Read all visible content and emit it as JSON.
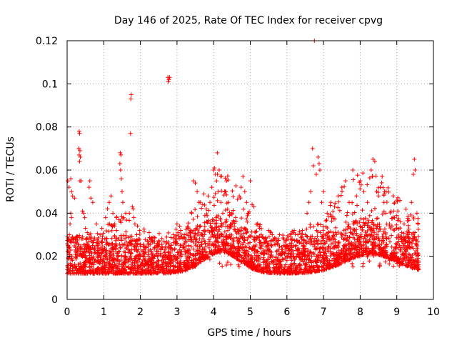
{
  "chart_data": {
    "type": "scatter",
    "title": "Day 146 of 2025, Rate Of TEC Index for receiver cpvg",
    "xlabel": "GPS time / hours",
    "ylabel": "ROTI / TECUs",
    "xlim": [
      0,
      10
    ],
    "ylim": [
      0,
      0.12
    ],
    "x_ticks": [
      0,
      1,
      2,
      3,
      4,
      5,
      6,
      7,
      8,
      9,
      10
    ],
    "x_tick_labels": [
      "0",
      "1",
      "2",
      "3",
      "4",
      "5",
      "6",
      "7",
      "8",
      "9",
      "10"
    ],
    "y_ticks": [
      0,
      0.02,
      0.04,
      0.06,
      0.08,
      0.1,
      0.12
    ],
    "y_tick_labels": [
      "0",
      "0.02",
      "0.04",
      "0.06",
      "0.08",
      "0.1",
      "0.12"
    ],
    "grid": true,
    "marker": "+",
    "color": "#ff0000",
    "series": [
      {
        "name": "ROTI",
        "points": [
          [
            0.02,
            0.055
          ],
          [
            0.05,
            0.052
          ],
          [
            0.1,
            0.056
          ],
          [
            0.12,
            0.05
          ],
          [
            0.15,
            0.048
          ],
          [
            0.2,
            0.047
          ],
          [
            0.1,
            0.04
          ],
          [
            0.12,
            0.038
          ],
          [
            0.08,
            0.035
          ],
          [
            0.06,
            0.03
          ],
          [
            0.15,
            0.029
          ],
          [
            0.33,
            0.078
          ],
          [
            0.34,
            0.077
          ],
          [
            0.32,
            0.07
          ],
          [
            0.35,
            0.069
          ],
          [
            0.33,
            0.067
          ],
          [
            0.36,
            0.066
          ],
          [
            0.34,
            0.064
          ],
          [
            0.35,
            0.055
          ],
          [
            0.38,
            0.055
          ],
          [
            0.42,
            0.041
          ],
          [
            0.45,
            0.04
          ],
          [
            0.48,
            0.038
          ],
          [
            0.5,
            0.033
          ],
          [
            0.55,
            0.031
          ],
          [
            0.6,
            0.03
          ],
          [
            0.65,
            0.028
          ],
          [
            0.65,
            0.047
          ],
          [
            0.7,
            0.045
          ],
          [
            0.8,
            0.035
          ],
          [
            0.9,
            0.03
          ],
          [
            0.62,
            0.055
          ],
          [
            0.6,
            0.052
          ],
          [
            1.05,
            0.038
          ],
          [
            1.1,
            0.042
          ],
          [
            1.15,
            0.045
          ],
          [
            1.2,
            0.048
          ],
          [
            1.25,
            0.04
          ],
          [
            1.3,
            0.035
          ],
          [
            1.35,
            0.032
          ],
          [
            1.4,
            0.028
          ],
          [
            1.45,
            0.068
          ],
          [
            1.47,
            0.067
          ],
          [
            1.44,
            0.063
          ],
          [
            1.46,
            0.06
          ],
          [
            1.48,
            0.056
          ],
          [
            1.5,
            0.05
          ],
          [
            1.52,
            0.045
          ],
          [
            1.6,
            0.04
          ],
          [
            1.7,
            0.04
          ],
          [
            1.75,
            0.095
          ],
          [
            1.74,
            0.093
          ],
          [
            1.73,
            0.077
          ],
          [
            1.78,
            0.043
          ],
          [
            1.8,
            0.042
          ],
          [
            1.82,
            0.038
          ],
          [
            1.85,
            0.035
          ],
          [
            1.9,
            0.03
          ],
          [
            1.95,
            0.028
          ],
          [
            2.75,
            0.103
          ],
          [
            2.78,
            0.102
          ],
          [
            2.8,
            0.103
          ],
          [
            2.76,
            0.101
          ],
          [
            3.0,
            0.035
          ],
          [
            3.1,
            0.032
          ],
          [
            3.2,
            0.03
          ],
          [
            3.3,
            0.033
          ],
          [
            3.4,
            0.04
          ],
          [
            3.45,
            0.055
          ],
          [
            3.5,
            0.054
          ],
          [
            3.55,
            0.05
          ],
          [
            3.6,
            0.045
          ],
          [
            3.7,
            0.044
          ],
          [
            3.8,
            0.042
          ],
          [
            3.85,
            0.048
          ],
          [
            3.9,
            0.045
          ],
          [
            3.95,
            0.052
          ],
          [
            4.0,
            0.06
          ],
          [
            4.02,
            0.061
          ],
          [
            4.05,
            0.058
          ],
          [
            4.08,
            0.055
          ],
          [
            4.1,
            0.068
          ],
          [
            4.12,
            0.05
          ],
          [
            4.15,
            0.06
          ],
          [
            4.2,
            0.045
          ],
          [
            4.25,
            0.04
          ],
          [
            4.3,
            0.05
          ],
          [
            4.35,
            0.055
          ],
          [
            4.4,
            0.045
          ],
          [
            4.5,
            0.04
          ],
          [
            4.6,
            0.038
          ],
          [
            4.7,
            0.048
          ],
          [
            4.75,
            0.052
          ],
          [
            4.8,
            0.057
          ],
          [
            4.85,
            0.05
          ],
          [
            4.9,
            0.045
          ],
          [
            4.95,
            0.04
          ],
          [
            5.0,
            0.055
          ],
          [
            5.05,
            0.044
          ],
          [
            5.1,
            0.043
          ],
          [
            5.2,
            0.035
          ],
          [
            5.3,
            0.03
          ],
          [
            5.4,
            0.028
          ],
          [
            5.5,
            0.032
          ],
          [
            5.6,
            0.03
          ],
          [
            5.7,
            0.028
          ],
          [
            5.8,
            0.03
          ],
          [
            5.9,
            0.025
          ],
          [
            6.0,
            0.028
          ],
          [
            6.1,
            0.03
          ],
          [
            6.2,
            0.032
          ],
          [
            6.3,
            0.03
          ],
          [
            6.4,
            0.028
          ],
          [
            6.5,
            0.03
          ],
          [
            6.55,
            0.04
          ],
          [
            6.6,
            0.045
          ],
          [
            6.65,
            0.05
          ],
          [
            6.7,
            0.07
          ],
          [
            6.72,
            0.062
          ],
          [
            6.75,
            0.12
          ],
          [
            6.8,
            0.058
          ],
          [
            6.85,
            0.066
          ],
          [
            6.88,
            0.063
          ],
          [
            6.9,
            0.06
          ],
          [
            6.95,
            0.045
          ],
          [
            7.0,
            0.05
          ],
          [
            7.1,
            0.04
          ],
          [
            7.2,
            0.045
          ],
          [
            7.3,
            0.043
          ],
          [
            7.4,
            0.048
          ],
          [
            7.5,
            0.052
          ],
          [
            7.6,
            0.055
          ],
          [
            7.7,
            0.045
          ],
          [
            7.8,
            0.06
          ],
          [
            7.9,
            0.048
          ],
          [
            8.0,
            0.055
          ],
          [
            8.1,
            0.05
          ],
          [
            8.2,
            0.045
          ],
          [
            8.3,
            0.06
          ],
          [
            8.35,
            0.065
          ],
          [
            8.4,
            0.064
          ],
          [
            8.45,
            0.05
          ],
          [
            8.5,
            0.048
          ],
          [
            8.55,
            0.052
          ],
          [
            8.6,
            0.057
          ],
          [
            8.65,
            0.045
          ],
          [
            8.7,
            0.04
          ],
          [
            8.8,
            0.035
          ],
          [
            8.9,
            0.038
          ],
          [
            9.0,
            0.033
          ],
          [
            9.1,
            0.036
          ],
          [
            9.2,
            0.035
          ],
          [
            9.3,
            0.03
          ],
          [
            9.4,
            0.045
          ],
          [
            9.45,
            0.058
          ],
          [
            9.48,
            0.065
          ],
          [
            9.5,
            0.06
          ],
          [
            9.55,
            0.04
          ],
          [
            9.58,
            0.035
          ]
        ]
      }
    ]
  }
}
